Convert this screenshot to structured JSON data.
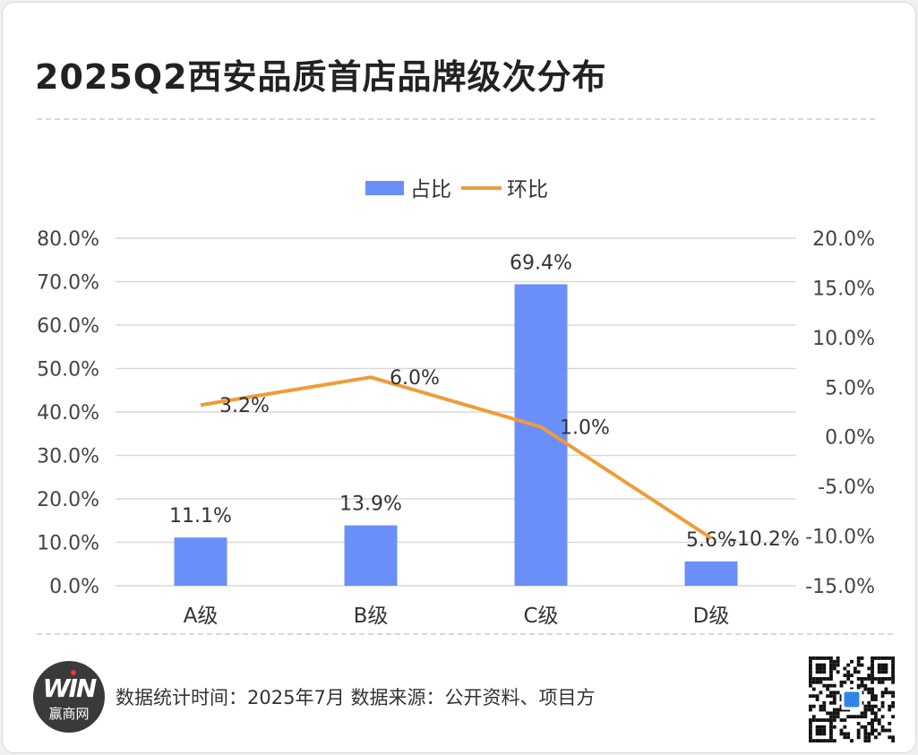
{
  "title": "2025Q2西安品质首店品牌级次分布",
  "footer": {
    "source_text": "数据统计时间：2025年7月  数据来源：公开资料、项目方",
    "logo_text": "赢商网"
  },
  "colors": {
    "bar": "#6b8ff8",
    "line": "#ee9c3b",
    "grid": "#d9d9d9",
    "text": "#444444"
  },
  "chart_data": {
    "type": "bar",
    "categories": [
      "A级",
      "B级",
      "C级",
      "D级"
    ],
    "series": [
      {
        "name": "占比",
        "type": "bar",
        "axis": "left",
        "values": [
          11.1,
          13.9,
          69.4,
          5.6
        ],
        "labels": [
          "11.1%",
          "13.9%",
          "69.4%",
          "5.6%"
        ]
      },
      {
        "name": "环比",
        "type": "line",
        "axis": "right",
        "values": [
          3.2,
          6.0,
          1.0,
          -10.2
        ],
        "labels": [
          "3.2%",
          "6.0%",
          "1.0%",
          "-10.2%"
        ]
      }
    ],
    "y_left": {
      "min": 0,
      "max": 80,
      "ticks": [
        "0.0%",
        "10.0%",
        "20.0%",
        "30.0%",
        "40.0%",
        "50.0%",
        "60.0%",
        "70.0%",
        "80.0%"
      ]
    },
    "y_right": {
      "min": -15,
      "max": 20,
      "ticks": [
        "-15.0%",
        "-10.0%",
        "-5.0%",
        "0.0%",
        "5.0%",
        "10.0%",
        "15.0%",
        "20.0%"
      ]
    },
    "legend_position": "top-center",
    "grid": true
  }
}
